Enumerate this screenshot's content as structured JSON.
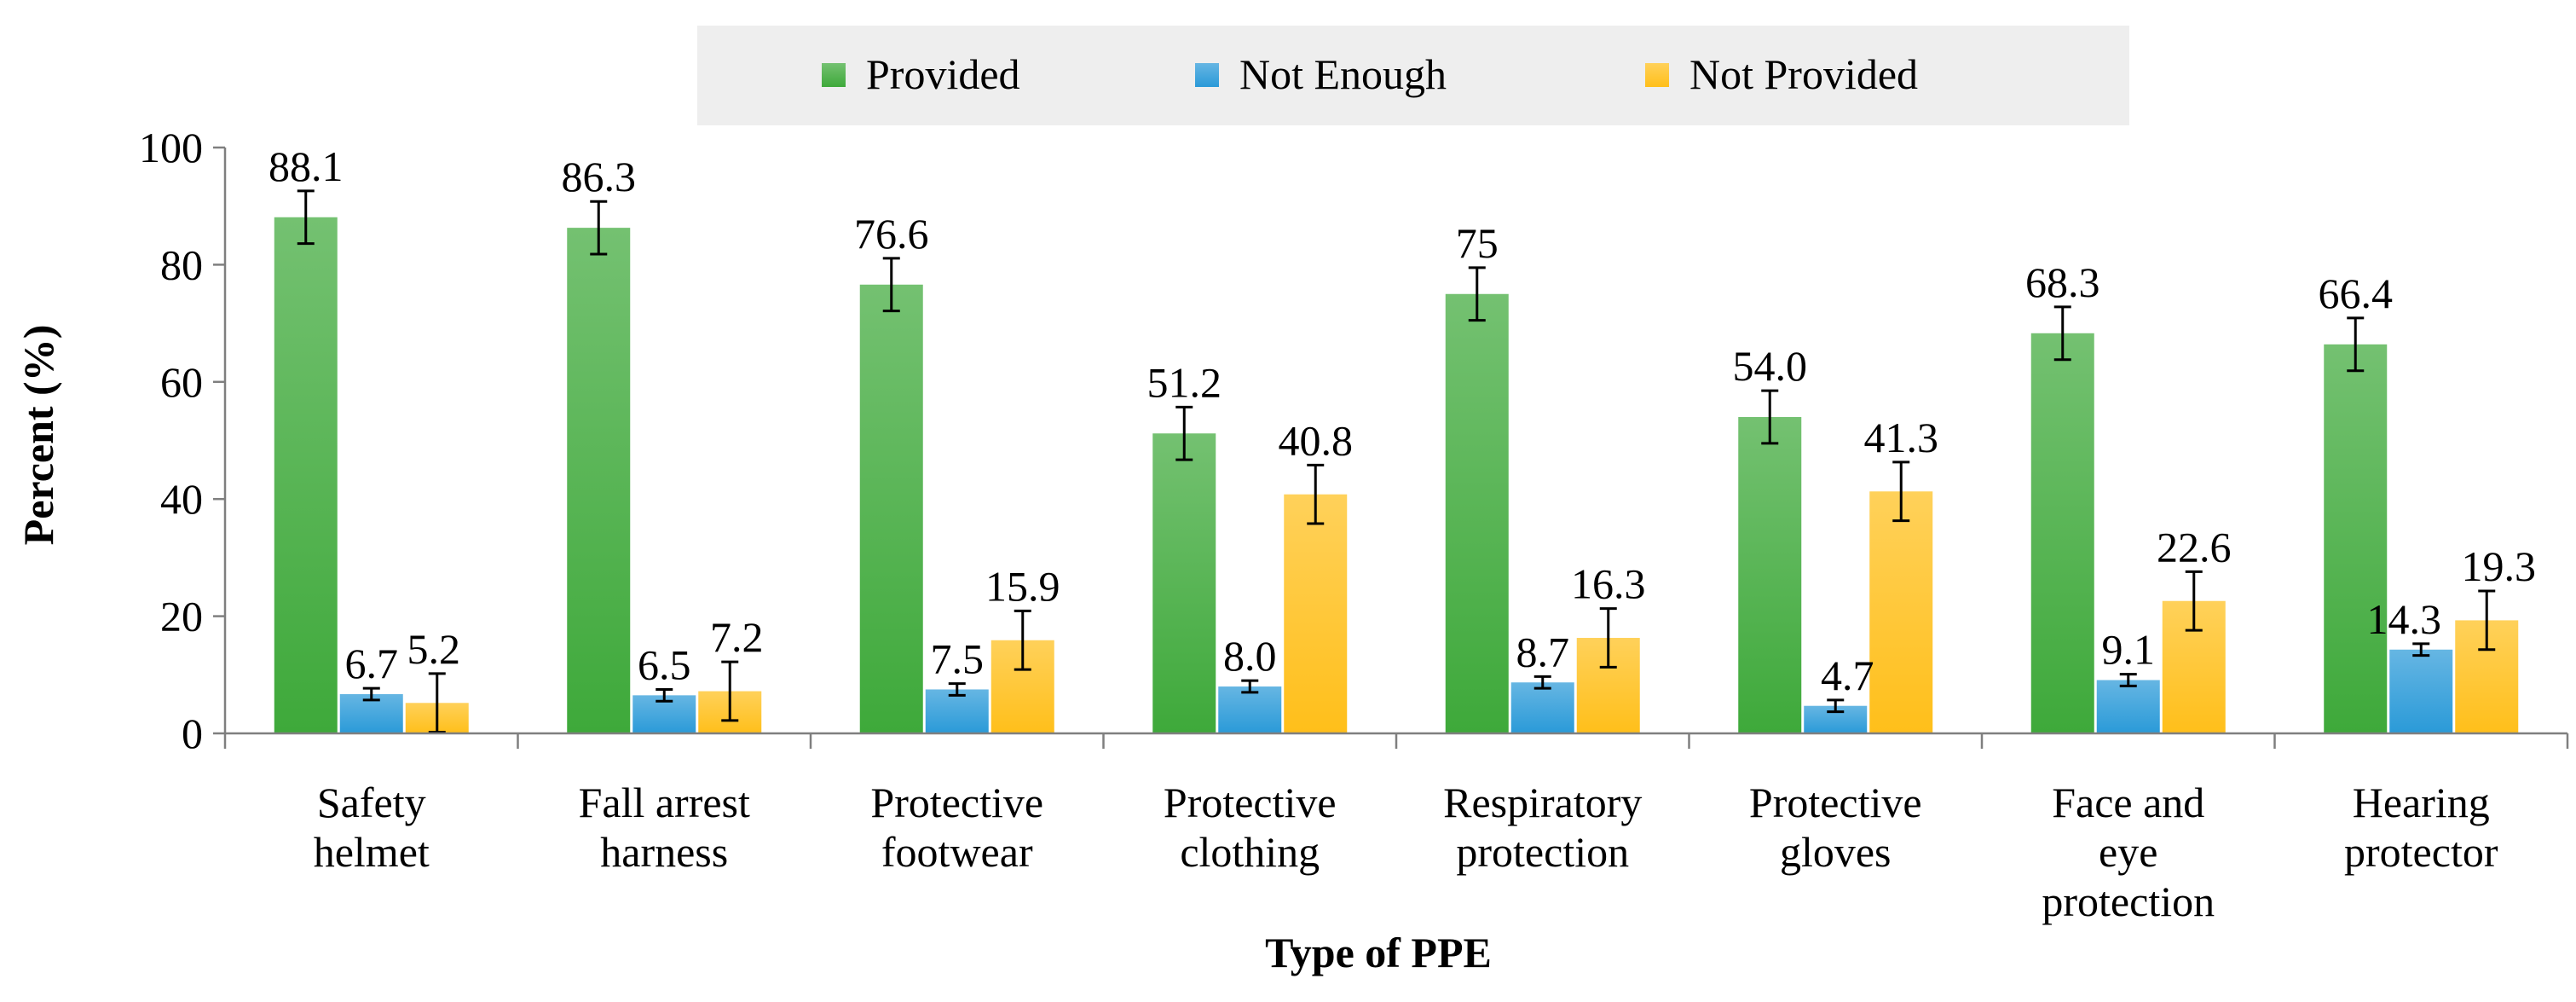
{
  "chart_data": {
    "type": "bar",
    "title": "",
    "xlabel": "Type of PPE",
    "ylabel": "Percent (%)",
    "ylim": [
      0,
      100
    ],
    "yticks": [
      0,
      20,
      40,
      60,
      80,
      100
    ],
    "grid": false,
    "legend_position": "top",
    "categories": [
      [
        "Safety",
        "helmet"
      ],
      [
        "Fall arrest",
        "harness"
      ],
      [
        "Protective",
        "footwear"
      ],
      [
        "Protective",
        "clothing"
      ],
      [
        "Respiratory",
        "protection"
      ],
      [
        "Protective",
        "gloves"
      ],
      [
        "Face and",
        "eye",
        "protection"
      ],
      [
        "Hearing",
        "protector"
      ]
    ],
    "series": [
      {
        "name": "Provided",
        "color": "#3ea93a",
        "values": [
          88.1,
          86.3,
          76.6,
          51.2,
          75,
          54.0,
          68.3,
          66.4
        ],
        "labels": [
          "88.1",
          "86.3",
          "76.6",
          "51.2",
          "75",
          "54.0",
          "68.3",
          "66.4"
        ],
        "error": [
          4.5,
          4.5,
          4.5,
          4.5,
          4.5,
          4.5,
          4.5,
          4.5
        ]
      },
      {
        "name": "Not Enough",
        "color": "#2a9ad8",
        "values": [
          6.7,
          6.5,
          7.5,
          8.0,
          8.7,
          4.7,
          9.1,
          14.3
        ],
        "labels": [
          "6.7",
          "6.5",
          "7.5",
          "8.0",
          "8.7",
          "4.7",
          "9.1",
          "14.3"
        ],
        "error": [
          1.0,
          1.0,
          1.0,
          1.0,
          1.0,
          1.0,
          1.0,
          1.0
        ]
      },
      {
        "name": "Not Provided",
        "color": "#ffbf1a",
        "values": [
          5.2,
          7.2,
          15.9,
          40.8,
          16.3,
          41.3,
          22.6,
          19.3
        ],
        "labels": [
          "5.2",
          "7.2",
          "15.9",
          "40.8",
          "16.3",
          "41.3",
          "22.6",
          "19.3"
        ],
        "error": [
          5.0,
          5.0,
          5.0,
          5.0,
          5.0,
          5.0,
          5.0,
          5.0
        ]
      }
    ]
  }
}
